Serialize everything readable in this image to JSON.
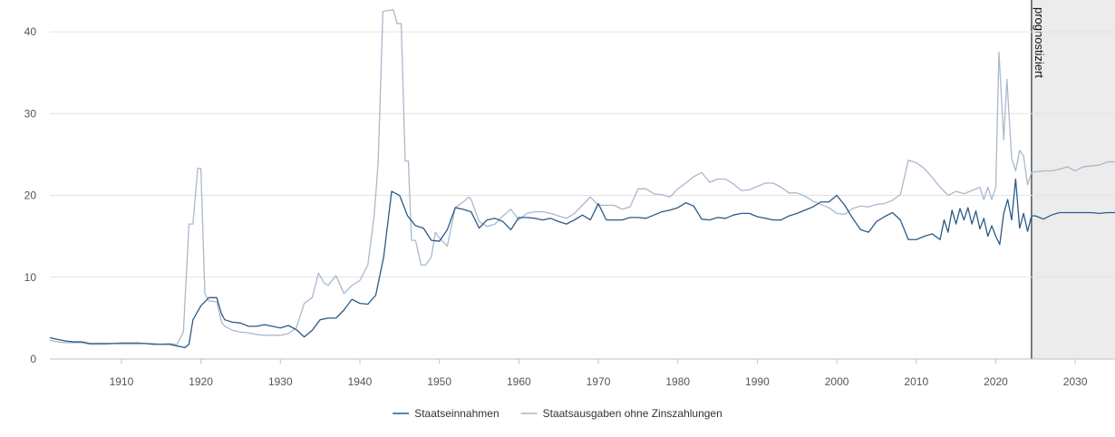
{
  "chart_data": {
    "type": "line",
    "title": "",
    "xlabel": "",
    "ylabel": "",
    "xlim": [
      1901,
      2035
    ],
    "ylim": [
      0,
      43
    ],
    "y_ticks": [
      0,
      10,
      20,
      30,
      40
    ],
    "x_ticks": [
      1910,
      1920,
      1930,
      1940,
      1950,
      1960,
      1970,
      1980,
      1990,
      2000,
      2010,
      2020,
      2030
    ],
    "grid": "horizontal",
    "legend_position": "bottom-center",
    "forecast": {
      "start_year": 2024.5,
      "label": "prognostiziert",
      "shade_color": "#ececec",
      "line_color": "#000000"
    },
    "series": [
      {
        "name": "Staatseinnahmen",
        "color": "#2b5a87",
        "points": [
          [
            1901,
            2.6
          ],
          [
            1902,
            2.4
          ],
          [
            1903,
            2.2
          ],
          [
            1904,
            2.1
          ],
          [
            1905,
            2.1
          ],
          [
            1906,
            1.9
          ],
          [
            1907,
            1.9
          ],
          [
            1908,
            1.9
          ],
          [
            1909,
            1.9
          ],
          [
            1910,
            1.9
          ],
          [
            1911,
            1.9
          ],
          [
            1912,
            1.9
          ],
          [
            1913,
            1.9
          ],
          [
            1914,
            1.8
          ],
          [
            1915,
            1.8
          ],
          [
            1916,
            1.8
          ],
          [
            1917,
            1.6
          ],
          [
            1918,
            1.4
          ],
          [
            1918.5,
            1.8
          ],
          [
            1919,
            4.8
          ],
          [
            1920,
            6.5
          ],
          [
            1921,
            7.5
          ],
          [
            1922,
            7.5
          ],
          [
            1922.6,
            5.5
          ],
          [
            1923,
            4.8
          ],
          [
            1924,
            4.5
          ],
          [
            1925,
            4.4
          ],
          [
            1926,
            4.0
          ],
          [
            1927,
            4.0
          ],
          [
            1928,
            4.2
          ],
          [
            1929,
            4.0
          ],
          [
            1930,
            3.8
          ],
          [
            1931,
            4.1
          ],
          [
            1932,
            3.6
          ],
          [
            1933,
            2.7
          ],
          [
            1934,
            3.5
          ],
          [
            1935,
            4.8
          ],
          [
            1936,
            5.0
          ],
          [
            1937,
            5.0
          ],
          [
            1938,
            6.0
          ],
          [
            1939,
            7.3
          ],
          [
            1940,
            6.8
          ],
          [
            1941,
            6.7
          ],
          [
            1942,
            7.8
          ],
          [
            1943,
            12.5
          ],
          [
            1944,
            20.5
          ],
          [
            1945,
            20.0
          ],
          [
            1946,
            17.5
          ],
          [
            1947,
            16.3
          ],
          [
            1948,
            16.0
          ],
          [
            1949,
            14.5
          ],
          [
            1950,
            14.4
          ],
          [
            1951,
            15.8
          ],
          [
            1952,
            18.5
          ],
          [
            1953,
            18.3
          ],
          [
            1954,
            18.0
          ],
          [
            1955,
            16.0
          ],
          [
            1956,
            17.0
          ],
          [
            1957,
            17.2
          ],
          [
            1958,
            16.8
          ],
          [
            1959,
            15.8
          ],
          [
            1960,
            17.3
          ],
          [
            1961,
            17.3
          ],
          [
            1962,
            17.2
          ],
          [
            1963,
            17.0
          ],
          [
            1964,
            17.2
          ],
          [
            1965,
            16.8
          ],
          [
            1966,
            16.5
          ],
          [
            1967,
            17.0
          ],
          [
            1968,
            17.6
          ],
          [
            1969,
            17.0
          ],
          [
            1970,
            19.0
          ],
          [
            1971,
            17.0
          ],
          [
            1972,
            17.0
          ],
          [
            1973,
            17.0
          ],
          [
            1974,
            17.3
          ],
          [
            1975,
            17.3
          ],
          [
            1976,
            17.2
          ],
          [
            1977,
            17.6
          ],
          [
            1978,
            18.0
          ],
          [
            1979,
            18.2
          ],
          [
            1980,
            18.5
          ],
          [
            1981,
            19.1
          ],
          [
            1982,
            18.7
          ],
          [
            1983,
            17.1
          ],
          [
            1984,
            17.0
          ],
          [
            1985,
            17.3
          ],
          [
            1986,
            17.2
          ],
          [
            1987,
            17.6
          ],
          [
            1988,
            17.8
          ],
          [
            1989,
            17.8
          ],
          [
            1990,
            17.4
          ],
          [
            1991,
            17.2
          ],
          [
            1992,
            17.0
          ],
          [
            1993,
            17.0
          ],
          [
            1994,
            17.5
          ],
          [
            1995,
            17.8
          ],
          [
            1996,
            18.2
          ],
          [
            1997,
            18.6
          ],
          [
            1998,
            19.2
          ],
          [
            1999,
            19.2
          ],
          [
            2000,
            20.0
          ],
          [
            2001,
            18.8
          ],
          [
            2002,
            17.2
          ],
          [
            2003,
            15.8
          ],
          [
            2004,
            15.5
          ],
          [
            2005,
            16.8
          ],
          [
            2006,
            17.4
          ],
          [
            2007,
            17.9
          ],
          [
            2008,
            17.0
          ],
          [
            2009,
            14.6
          ],
          [
            2010,
            14.6
          ],
          [
            2011,
            15.0
          ],
          [
            2012,
            15.3
          ],
          [
            2013,
            14.6
          ],
          [
            2013.5,
            17.0
          ],
          [
            2014,
            15.5
          ],
          [
            2014.5,
            18.2
          ],
          [
            2015,
            16.5
          ],
          [
            2015.5,
            18.4
          ],
          [
            2016,
            17.0
          ],
          [
            2016.5,
            18.5
          ],
          [
            2017,
            16.5
          ],
          [
            2017.5,
            18.1
          ],
          [
            2018,
            15.9
          ],
          [
            2018.5,
            17.2
          ],
          [
            2019,
            15.0
          ],
          [
            2019.5,
            16.3
          ],
          [
            2020,
            15.0
          ],
          [
            2020.5,
            14.0
          ],
          [
            2021,
            17.8
          ],
          [
            2021.5,
            19.5
          ],
          [
            2022,
            17.0
          ],
          [
            2022.5,
            22.0
          ],
          [
            2023,
            16.0
          ],
          [
            2023.5,
            17.8
          ],
          [
            2024,
            15.6
          ],
          [
            2024.5,
            17.5
          ],
          [
            2025,
            17.5
          ],
          [
            2026,
            17.1
          ],
          [
            2027,
            17.6
          ],
          [
            2028,
            17.9
          ],
          [
            2029,
            17.9
          ],
          [
            2030,
            17.9
          ],
          [
            2031,
            17.9
          ],
          [
            2032,
            17.9
          ],
          [
            2033,
            17.8
          ],
          [
            2034,
            17.9
          ],
          [
            2035,
            17.9
          ]
        ]
      },
      {
        "name": "Staatsausgaben ohne Zinszahlungen",
        "color": "#a9b9cc",
        "points": [
          [
            1901,
            2.3
          ],
          [
            1902,
            2.1
          ],
          [
            1903,
            2.0
          ],
          [
            1904,
            2.0
          ],
          [
            1905,
            2.0
          ],
          [
            1906,
            1.8
          ],
          [
            1907,
            1.8
          ],
          [
            1908,
            1.8
          ],
          [
            1909,
            1.9
          ],
          [
            1910,
            2.0
          ],
          [
            1911,
            2.0
          ],
          [
            1912,
            2.0
          ],
          [
            1913,
            1.9
          ],
          [
            1914,
            1.9
          ],
          [
            1915,
            1.8
          ],
          [
            1916,
            1.9
          ],
          [
            1917,
            1.8
          ],
          [
            1917.8,
            3.3
          ],
          [
            1918.5,
            16.5
          ],
          [
            1919,
            16.5
          ],
          [
            1919.6,
            23.3
          ],
          [
            1920,
            23.3
          ],
          [
            1920.5,
            8.0
          ],
          [
            1921,
            7.1
          ],
          [
            1922,
            7.0
          ],
          [
            1922.6,
            4.5
          ],
          [
            1923,
            4.0
          ],
          [
            1924,
            3.5
          ],
          [
            1925,
            3.3
          ],
          [
            1926,
            3.2
          ],
          [
            1927,
            3.0
          ],
          [
            1928,
            2.9
          ],
          [
            1929,
            2.9
          ],
          [
            1930,
            2.9
          ],
          [
            1931,
            3.1
          ],
          [
            1932,
            3.8
          ],
          [
            1933,
            6.8
          ],
          [
            1934,
            7.5
          ],
          [
            1934.8,
            10.5
          ],
          [
            1935.5,
            9.3
          ],
          [
            1936,
            9.0
          ],
          [
            1937,
            10.2
          ],
          [
            1938,
            8.0
          ],
          [
            1939,
            9.0
          ],
          [
            1940,
            9.6
          ],
          [
            1941,
            11.5
          ],
          [
            1941.8,
            17.5
          ],
          [
            1942.3,
            24.0
          ],
          [
            1942.9,
            42.5
          ],
          [
            1943.5,
            42.6
          ],
          [
            1944.2,
            42.7
          ],
          [
            1944.7,
            41.0
          ],
          [
            1945.2,
            41.0
          ],
          [
            1945.7,
            24.2
          ],
          [
            1946.1,
            24.2
          ],
          [
            1946.5,
            14.5
          ],
          [
            1947,
            14.5
          ],
          [
            1947.7,
            11.5
          ],
          [
            1948.3,
            11.5
          ],
          [
            1949,
            12.5
          ],
          [
            1949.5,
            15.5
          ],
          [
            1950,
            14.8
          ],
          [
            1951,
            13.8
          ],
          [
            1952,
            18.5
          ],
          [
            1953,
            19.2
          ],
          [
            1953.7,
            19.8
          ],
          [
            1954,
            19.5
          ],
          [
            1955,
            16.8
          ],
          [
            1956,
            16.2
          ],
          [
            1957,
            16.5
          ],
          [
            1958,
            17.5
          ],
          [
            1959,
            18.3
          ],
          [
            1960,
            17.0
          ],
          [
            1961,
            17.8
          ],
          [
            1962,
            18.0
          ],
          [
            1963,
            18.0
          ],
          [
            1964,
            17.8
          ],
          [
            1965,
            17.5
          ],
          [
            1966,
            17.2
          ],
          [
            1967,
            17.8
          ],
          [
            1968,
            18.8
          ],
          [
            1969,
            19.8
          ],
          [
            1970,
            18.8
          ],
          [
            1971,
            18.8
          ],
          [
            1972,
            18.8
          ],
          [
            1973,
            18.3
          ],
          [
            1974,
            18.6
          ],
          [
            1975,
            20.8
          ],
          [
            1976,
            20.8
          ],
          [
            1977,
            20.2
          ],
          [
            1978,
            20.1
          ],
          [
            1979,
            19.8
          ],
          [
            1980,
            20.8
          ],
          [
            1981,
            21.5
          ],
          [
            1982,
            22.3
          ],
          [
            1983,
            22.8
          ],
          [
            1984,
            21.6
          ],
          [
            1985,
            22.0
          ],
          [
            1986,
            22.0
          ],
          [
            1987,
            21.4
          ],
          [
            1988,
            20.6
          ],
          [
            1989,
            20.7
          ],
          [
            1990,
            21.1
          ],
          [
            1991,
            21.5
          ],
          [
            1992,
            21.5
          ],
          [
            1993,
            21.0
          ],
          [
            1994,
            20.3
          ],
          [
            1995,
            20.3
          ],
          [
            1996,
            19.9
          ],
          [
            1997,
            19.3
          ],
          [
            1998,
            18.9
          ],
          [
            1999,
            18.5
          ],
          [
            2000,
            17.8
          ],
          [
            2001,
            17.7
          ],
          [
            2002,
            18.4
          ],
          [
            2003,
            18.7
          ],
          [
            2004,
            18.6
          ],
          [
            2005,
            18.9
          ],
          [
            2006,
            19.0
          ],
          [
            2007,
            19.4
          ],
          [
            2008,
            20.1
          ],
          [
            2009,
            24.3
          ],
          [
            2010,
            24.0
          ],
          [
            2011,
            23.3
          ],
          [
            2012,
            22.2
          ],
          [
            2013,
            21.0
          ],
          [
            2014,
            20.0
          ],
          [
            2015,
            20.5
          ],
          [
            2016,
            20.2
          ],
          [
            2017,
            20.6
          ],
          [
            2018,
            21.0
          ],
          [
            2018.5,
            19.5
          ],
          [
            2019,
            21.0
          ],
          [
            2019.5,
            19.5
          ],
          [
            2020,
            21.0
          ],
          [
            2020.4,
            37.5
          ],
          [
            2021,
            26.8
          ],
          [
            2021.4,
            34.2
          ],
          [
            2022,
            24.5
          ],
          [
            2022.5,
            23.0
          ],
          [
            2023,
            25.5
          ],
          [
            2023.5,
            24.8
          ],
          [
            2024,
            21.3
          ],
          [
            2024.5,
            22.8
          ],
          [
            2025,
            22.9
          ],
          [
            2026,
            23.0
          ],
          [
            2027,
            23.0
          ],
          [
            2028,
            23.2
          ],
          [
            2029,
            23.5
          ],
          [
            2030,
            23.0
          ],
          [
            2031,
            23.5
          ],
          [
            2032,
            23.6
          ],
          [
            2033,
            23.7
          ],
          [
            2034,
            24.1
          ],
          [
            2035,
            24.1
          ]
        ]
      }
    ]
  }
}
